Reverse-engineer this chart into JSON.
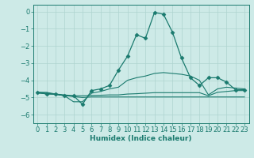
{
  "xlabel": "Humidex (Indice chaleur)",
  "background_color": "#cdeae7",
  "grid_color": "#aed4d0",
  "line_color": "#1a7a6e",
  "xlim": [
    -0.5,
    23.5
  ],
  "ylim": [
    -6.5,
    0.4
  ],
  "xticks": [
    0,
    1,
    2,
    3,
    4,
    5,
    6,
    7,
    8,
    9,
    10,
    11,
    12,
    13,
    14,
    15,
    16,
    17,
    18,
    19,
    20,
    21,
    22,
    23
  ],
  "yticks": [
    0,
    -1,
    -2,
    -3,
    -4,
    -5,
    -6
  ],
  "series_main": {
    "x": [
      0,
      1,
      2,
      3,
      4,
      5,
      6,
      7,
      8,
      9,
      10,
      11,
      12,
      13,
      14,
      15,
      16,
      17,
      18,
      19,
      20,
      21,
      22,
      23
    ],
    "y": [
      -4.7,
      -4.8,
      -4.8,
      -4.9,
      -4.9,
      -5.4,
      -4.6,
      -4.5,
      -4.3,
      -3.4,
      -2.6,
      -1.35,
      -1.55,
      -0.05,
      -0.15,
      -1.2,
      -2.7,
      -3.85,
      -4.3,
      -3.85,
      -3.85,
      -4.1,
      -4.55,
      -4.55
    ]
  },
  "series_mid": {
    "x": [
      0,
      1,
      2,
      3,
      4,
      5,
      6,
      7,
      8,
      9,
      10,
      11,
      12,
      13,
      14,
      15,
      16,
      17,
      18,
      19,
      20,
      21,
      22,
      23
    ],
    "y": [
      -4.7,
      -4.7,
      -4.8,
      -4.9,
      -5.25,
      -5.25,
      -4.75,
      -4.65,
      -4.5,
      -4.4,
      -4.0,
      -3.85,
      -3.75,
      -3.6,
      -3.55,
      -3.6,
      -3.65,
      -3.75,
      -4.0,
      -4.85,
      -4.5,
      -4.4,
      -4.45,
      -4.5
    ]
  },
  "series_flat1": {
    "x": [
      0,
      1,
      2,
      3,
      4,
      5,
      6,
      7,
      8,
      9,
      10,
      11,
      12,
      13,
      14,
      15,
      16,
      17,
      18,
      19,
      20,
      21,
      22,
      23
    ],
    "y": [
      -4.7,
      -4.75,
      -4.8,
      -4.85,
      -4.9,
      -4.9,
      -4.88,
      -4.87,
      -4.85,
      -4.85,
      -4.8,
      -4.78,
      -4.75,
      -4.72,
      -4.72,
      -4.72,
      -4.72,
      -4.72,
      -4.72,
      -4.9,
      -4.7,
      -4.65,
      -4.6,
      -4.6
    ]
  },
  "series_flat2": {
    "x": [
      0,
      1,
      2,
      3,
      4,
      5,
      6,
      7,
      8,
      9,
      10,
      11,
      12,
      13,
      14,
      15,
      16,
      17,
      18,
      19,
      20,
      21,
      22,
      23
    ],
    "y": [
      -4.75,
      -4.78,
      -4.82,
      -4.88,
      -4.95,
      -5.0,
      -4.97,
      -4.97,
      -4.97,
      -4.97,
      -4.97,
      -4.97,
      -4.97,
      -4.97,
      -4.97,
      -4.97,
      -4.97,
      -4.97,
      -4.97,
      -4.97,
      -4.97,
      -4.97,
      -4.97,
      -4.97
    ]
  },
  "xlabel_fontsize": 6.5,
  "tick_fontsize": 6,
  "marker": "D",
  "markersize": 2.5
}
